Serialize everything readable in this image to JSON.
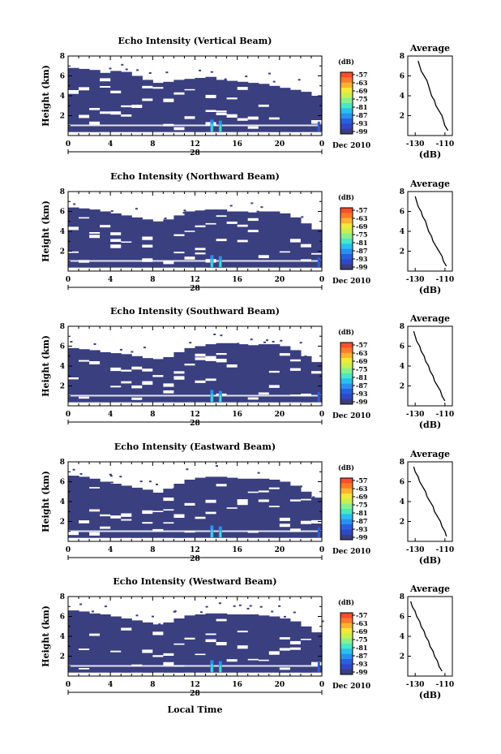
{
  "figure": {
    "xlabel": "Local Time",
    "date_label": "Dec 2010",
    "day_label": "28",
    "colorbar_unit": "(dB)",
    "colorbar_ticks": [
      "-57",
      "-63",
      "-69",
      "-75",
      "-81",
      "-87",
      "-93",
      "-99"
    ],
    "colorbar_colors": [
      "#ff4c2a",
      "#ff7a2a",
      "#ffb230",
      "#f4e838",
      "#c8f050",
      "#88f090",
      "#48e8c8",
      "#28c0f0",
      "#2890f0",
      "#2860e0",
      "#3048c8",
      "#3a3f80"
    ]
  },
  "chart_data": [
    {
      "type": "heatmap",
      "title": "Echo Intensity (Vertical Beam)",
      "ylabel": "Height (km)",
      "xlim": [
        0,
        24
      ],
      "ylim": [
        0,
        8
      ],
      "x_ticks": [
        "0",
        "4",
        "8",
        "12",
        "16",
        "20",
        "0"
      ],
      "y_ticks": [
        "2",
        "4",
        "6",
        "8"
      ],
      "cloud_top_km": [
        6.8,
        6.7,
        6.6,
        6.3,
        6.5,
        6.4,
        6.0,
        5.6,
        5.3,
        5.4,
        5.6,
        5.7,
        5.8,
        5.9,
        5.6,
        5.5,
        5.4,
        5.3,
        5.2,
        5.0,
        4.8,
        4.6,
        4.4,
        4.0
      ],
      "profile": {
        "title": "Average",
        "xlabel": "(dB)",
        "x_ticks": [
          "-130",
          "-110"
        ],
        "xlim": [
          -135,
          -105
        ],
        "heights_km": [
          0.5,
          1,
          1.5,
          2,
          2.5,
          3,
          3.5,
          4,
          4.5,
          5,
          5.5,
          6,
          6.5,
          7,
          7.5
        ],
        "values_db": [
          -108,
          -110,
          -111,
          -112,
          -114,
          -116,
          -117,
          -119,
          -120,
          -121,
          -122,
          -124,
          -126,
          -127,
          -128
        ]
      }
    },
    {
      "type": "heatmap",
      "title": "Echo Intensity (Northward Beam)",
      "ylabel": "Height (km)",
      "xlim": [
        0,
        24
      ],
      "ylim": [
        0,
        8
      ],
      "x_ticks": [
        "0",
        "4",
        "8",
        "12",
        "16",
        "20",
        "0"
      ],
      "y_ticks": [
        "2",
        "4",
        "6",
        "8"
      ],
      "cloud_top_km": [
        6.4,
        6.3,
        6.2,
        6.0,
        5.8,
        5.6,
        5.4,
        5.2,
        5.0,
        5.2,
        5.6,
        6.0,
        6.1,
        6.2,
        6.2,
        6.0,
        6.0,
        5.9,
        6.0,
        6.0,
        5.8,
        5.4,
        4.8,
        4.2
      ],
      "profile": {
        "title": "Average",
        "xlabel": "(dB)",
        "x_ticks": [
          "-130",
          "-110"
        ],
        "xlim": [
          -135,
          -105
        ],
        "heights_km": [
          0.5,
          1,
          1.5,
          2,
          2.5,
          3,
          3.5,
          4,
          4.5,
          5,
          5.5,
          6,
          6.5,
          7,
          7.5
        ],
        "values_db": [
          -109,
          -111,
          -112,
          -114,
          -116,
          -118,
          -119,
          -121,
          -122,
          -123,
          -125,
          -126,
          -128,
          -129,
          -130
        ]
      }
    },
    {
      "type": "heatmap",
      "title": "Echo Intensity (Southward Beam)",
      "ylabel": "Height (km)",
      "xlim": [
        0,
        24
      ],
      "ylim": [
        0,
        8
      ],
      "x_ticks": [
        "0",
        "4",
        "8",
        "12",
        "16",
        "20",
        "0"
      ],
      "y_ticks": [
        "2",
        "4",
        "6",
        "8"
      ],
      "cloud_top_km": [
        5.8,
        5.7,
        5.6,
        5.4,
        5.3,
        5.2,
        5.0,
        4.8,
        4.7,
        4.9,
        5.4,
        5.8,
        6.0,
        6.2,
        6.3,
        6.3,
        6.2,
        6.1,
        6.2,
        6.2,
        6.0,
        5.6,
        5.0,
        4.4
      ],
      "profile": {
        "title": "Average",
        "xlabel": "(dB)",
        "x_ticks": [
          "-130",
          "-110"
        ],
        "xlim": [
          -135,
          -105
        ],
        "heights_km": [
          0.5,
          1,
          1.5,
          2,
          2.5,
          3,
          3.5,
          4,
          4.5,
          5,
          5.5,
          6,
          6.5,
          7,
          7.5
        ],
        "values_db": [
          -110,
          -112,
          -113,
          -115,
          -117,
          -118,
          -120,
          -121,
          -123,
          -124,
          -126,
          -127,
          -129,
          -130,
          -131
        ]
      }
    },
    {
      "type": "heatmap",
      "title": "Echo Intensity (Eastward Beam)",
      "ylabel": "Height (km)",
      "xlim": [
        0,
        24
      ],
      "ylim": [
        0,
        8
      ],
      "x_ticks": [
        "0",
        "4",
        "8",
        "12",
        "16",
        "20",
        "0"
      ],
      "y_ticks": [
        "2",
        "4",
        "6",
        "8"
      ],
      "cloud_top_km": [
        6.6,
        6.5,
        6.3,
        6.0,
        5.8,
        5.6,
        5.4,
        5.2,
        4.9,
        5.3,
        5.8,
        6.2,
        6.4,
        6.5,
        6.5,
        6.4,
        6.3,
        6.3,
        6.3,
        6.2,
        6.0,
        5.6,
        5.0,
        4.4
      ],
      "profile": {
        "title": "Average",
        "xlabel": "(dB)",
        "x_ticks": [
          "-130",
          "-110"
        ],
        "xlim": [
          -135,
          -105
        ],
        "heights_km": [
          0.5,
          1,
          1.5,
          2,
          2.5,
          3,
          3.5,
          4,
          4.5,
          5,
          5.5,
          6,
          6.5,
          7,
          7.5
        ],
        "values_db": [
          -109,
          -110,
          -112,
          -113,
          -115,
          -117,
          -118,
          -120,
          -122,
          -123,
          -125,
          -127,
          -128,
          -130,
          -131
        ]
      }
    },
    {
      "type": "heatmap",
      "title": "Echo Intensity (Westward Beam)",
      "ylabel": "Height (km)",
      "xlim": [
        0,
        24
      ],
      "ylim": [
        0,
        8
      ],
      "x_ticks": [
        "0",
        "4",
        "8",
        "12",
        "16",
        "20",
        "0"
      ],
      "y_ticks": [
        "2",
        "4",
        "6",
        "8"
      ],
      "cloud_top_km": [
        6.6,
        6.5,
        6.3,
        6.2,
        6.0,
        5.8,
        5.6,
        5.4,
        5.2,
        5.4,
        5.8,
        6.1,
        6.2,
        6.3,
        6.3,
        6.2,
        6.2,
        6.2,
        6.1,
        6.0,
        5.8,
        5.5,
        5.0,
        4.4
      ],
      "profile": {
        "title": "Average",
        "xlabel": "(dB)",
        "x_ticks": [
          "-130",
          "-110"
        ],
        "xlim": [
          -135,
          -105
        ],
        "heights_km": [
          0.5,
          1,
          1.5,
          2,
          2.5,
          3,
          3.5,
          4,
          4.5,
          5,
          5.5,
          6,
          6.5,
          7,
          7.5
        ],
        "values_db": [
          -112,
          -114,
          -115,
          -117,
          -118,
          -120,
          -121,
          -123,
          -124,
          -126,
          -127,
          -129,
          -130,
          -132,
          -133
        ]
      }
    }
  ]
}
